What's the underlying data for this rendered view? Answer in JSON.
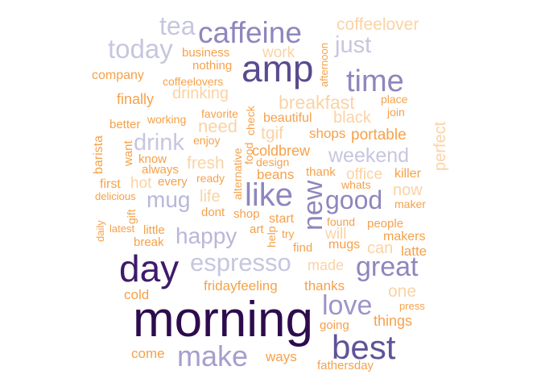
{
  "palette": {
    "darkest": "#2d0b4d",
    "dark": "#5a4a8e",
    "mid": "#8f86bd",
    "light": "#c6c6e0",
    "orange": "#f6a14a",
    "peach": "#fbd3a4"
  },
  "words": [
    {
      "text": "morning",
      "color": "#2d0b4d"
    },
    {
      "text": "day",
      "color": "#3e1a6a"
    },
    {
      "text": "amp",
      "color": "#5a4a8e"
    },
    {
      "text": "best",
      "color": "#5f5497"
    },
    {
      "text": "caffeine",
      "color": "#8f86bd"
    },
    {
      "text": "time",
      "color": "#8f86bd"
    },
    {
      "text": "like",
      "color": "#8f86bd"
    },
    {
      "text": "new",
      "color": "#8f86bd"
    },
    {
      "text": "good",
      "color": "#8f86bd"
    },
    {
      "text": "great",
      "color": "#8f86bd"
    },
    {
      "text": "love",
      "color": "#9c95c8"
    },
    {
      "text": "make",
      "color": "#a49fcc"
    },
    {
      "text": "espresso",
      "color": "#c6c6e0"
    },
    {
      "text": "happy",
      "color": "#b9b7d9"
    },
    {
      "text": "mug",
      "color": "#b9b7d9"
    },
    {
      "text": "today",
      "color": "#c6c6e0"
    },
    {
      "text": "tea",
      "color": "#c6c6e0"
    },
    {
      "text": "just",
      "color": "#c6c6e0"
    },
    {
      "text": "weekend",
      "color": "#c6c6e0"
    },
    {
      "text": "drink",
      "color": "#c6c6e0"
    },
    {
      "text": "coffeelover",
      "color": "#fbd3a4"
    },
    {
      "text": "breakfast",
      "color": "#fbd3a4"
    },
    {
      "text": "work",
      "color": "#fbd3a4"
    },
    {
      "text": "fresh",
      "color": "#fbd3a4"
    },
    {
      "text": "tgif",
      "color": "#fbd3a4"
    },
    {
      "text": "drinking",
      "color": "#fbd3a4"
    },
    {
      "text": "perfect",
      "color": "#fbd3a4"
    },
    {
      "text": "need",
      "color": "#fbd3a4"
    },
    {
      "text": "black",
      "color": "#fbd3a4"
    },
    {
      "text": "life",
      "color": "#fbd3a4"
    },
    {
      "text": "office",
      "color": "#fbd3a4"
    },
    {
      "text": "now",
      "color": "#fbd3a4"
    },
    {
      "text": "one",
      "color": "#fbd3a4"
    },
    {
      "text": "made",
      "color": "#fbd3a4"
    },
    {
      "text": "hot",
      "color": "#fbd3a4"
    },
    {
      "text": "will",
      "color": "#fbd3a4"
    },
    {
      "text": "can",
      "color": "#fbd3a4"
    },
    {
      "text": "business",
      "color": "#f6a14a"
    },
    {
      "text": "nothing",
      "color": "#f6a14a"
    },
    {
      "text": "company",
      "color": "#f6a14a"
    },
    {
      "text": "coffeelovers",
      "color": "#f6a14a"
    },
    {
      "text": "afternoon",
      "color": "#f6a14a"
    },
    {
      "text": "finally",
      "color": "#f6a14a"
    },
    {
      "text": "place",
      "color": "#f6a14a"
    },
    {
      "text": "join",
      "color": "#f6a14a"
    },
    {
      "text": "check",
      "color": "#f6a14a"
    },
    {
      "text": "favorite",
      "color": "#f6a14a"
    },
    {
      "text": "working",
      "color": "#f6a14a"
    },
    {
      "text": "better",
      "color": "#f6a14a"
    },
    {
      "text": "barista",
      "color": "#f6a14a"
    },
    {
      "text": "want",
      "color": "#f6a14a"
    },
    {
      "text": "beautiful",
      "color": "#f6a14a"
    },
    {
      "text": "enjoy",
      "color": "#f6a14a"
    },
    {
      "text": "food",
      "color": "#f6a14a"
    },
    {
      "text": "shops",
      "color": "#f6a14a"
    },
    {
      "text": "portable",
      "color": "#f6a14a"
    },
    {
      "text": "alternative",
      "color": "#f6a14a"
    },
    {
      "text": "coldbrew",
      "color": "#f6a14a"
    },
    {
      "text": "whats",
      "color": "#f6a14a"
    },
    {
      "text": "know",
      "color": "#f6a14a"
    },
    {
      "text": "always",
      "color": "#f6a14a"
    },
    {
      "text": "design",
      "color": "#f6a14a"
    },
    {
      "text": "beans",
      "color": "#f6a14a"
    },
    {
      "text": "thank",
      "color": "#f6a14a"
    },
    {
      "text": "killer",
      "color": "#f6a14a"
    },
    {
      "text": "first",
      "color": "#f6a14a"
    },
    {
      "text": "every",
      "color": "#f6a14a"
    },
    {
      "text": "ready",
      "color": "#f6a14a"
    },
    {
      "text": "delicious",
      "color": "#f6a14a"
    },
    {
      "text": "maker",
      "color": "#f6a14a"
    },
    {
      "text": "dont",
      "color": "#f6a14a"
    },
    {
      "text": "shop",
      "color": "#f6a14a"
    },
    {
      "text": "start",
      "color": "#f6a14a"
    },
    {
      "text": "found",
      "color": "#f6a14a"
    },
    {
      "text": "people",
      "color": "#f6a14a"
    },
    {
      "text": "gift",
      "color": "#f6a14a"
    },
    {
      "text": "daily",
      "color": "#f6a14a"
    },
    {
      "text": "latest",
      "color": "#f6a14a"
    },
    {
      "text": "little",
      "color": "#f6a14a"
    },
    {
      "text": "art",
      "color": "#f6a14a"
    },
    {
      "text": "help",
      "color": "#f6a14a"
    },
    {
      "text": "try",
      "color": "#f6a14a"
    },
    {
      "text": "makers",
      "color": "#f6a14a"
    },
    {
      "text": "break",
      "color": "#f6a14a"
    },
    {
      "text": "find",
      "color": "#f6a14a"
    },
    {
      "text": "mugs",
      "color": "#f6a14a"
    },
    {
      "text": "latte",
      "color": "#f6a14a"
    },
    {
      "text": "fridayfeeling",
      "color": "#f6a14a"
    },
    {
      "text": "thanks",
      "color": "#f6a14a"
    },
    {
      "text": "cold",
      "color": "#f6a14a"
    },
    {
      "text": "press",
      "color": "#f6a14a"
    },
    {
      "text": "things",
      "color": "#f6a14a"
    },
    {
      "text": "going",
      "color": "#f6a14a"
    },
    {
      "text": "come",
      "color": "#f6a14a"
    },
    {
      "text": "ways",
      "color": "#f6a14a"
    },
    {
      "text": "fathersday",
      "color": "#f6a14a"
    }
  ]
}
